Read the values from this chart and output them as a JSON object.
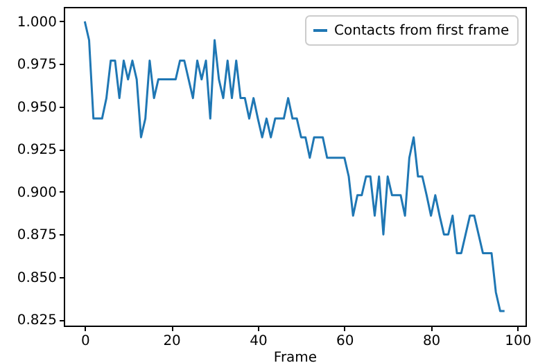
{
  "chart_data": {
    "type": "line",
    "xlabel": "Frame",
    "legend": "top right",
    "xlim": [
      -4.85,
      101.85
    ],
    "ylim": [
      0.8215,
      1.0085
    ],
    "xticks": [
      0,
      20,
      40,
      60,
      80,
      100
    ],
    "yticks": [
      {
        "value": 0.825,
        "label": "0.825"
      },
      {
        "value": 0.85,
        "label": "0.850"
      },
      {
        "value": 0.875,
        "label": "0.875"
      },
      {
        "value": 0.9,
        "label": "0.900"
      },
      {
        "value": 0.925,
        "label": "0.925"
      },
      {
        "value": 0.95,
        "label": "0.950"
      },
      {
        "value": 0.975,
        "label": "0.975"
      },
      {
        "value": 1.0,
        "label": "1.000"
      }
    ],
    "x": [
      0,
      1,
      2,
      3,
      4,
      5,
      6,
      7,
      8,
      9,
      10,
      11,
      12,
      13,
      14,
      15,
      16,
      17,
      18,
      19,
      20,
      21,
      22,
      23,
      24,
      25,
      26,
      27,
      28,
      29,
      30,
      31,
      32,
      33,
      34,
      35,
      36,
      37,
      38,
      39,
      40,
      41,
      42,
      43,
      44,
      45,
      46,
      47,
      48,
      49,
      50,
      51,
      52,
      53,
      54,
      55,
      56,
      57,
      58,
      59,
      60,
      61,
      62,
      63,
      64,
      65,
      66,
      67,
      68,
      69,
      70,
      71,
      72,
      73,
      74,
      75,
      76,
      77,
      78,
      79,
      80,
      81,
      82,
      83,
      84,
      85,
      86,
      87,
      88,
      89,
      90,
      91,
      92,
      93,
      94,
      95,
      96,
      97
    ],
    "series": [
      {
        "name": "Contacts from first frame",
        "color": "#1f77b4",
        "values": [
          1.0,
          0.989,
          0.943,
          0.943,
          0.943,
          0.955,
          0.977,
          0.977,
          0.955,
          0.977,
          0.966,
          0.977,
          0.966,
          0.932,
          0.943,
          0.977,
          0.955,
          0.966,
          0.966,
          0.966,
          0.966,
          0.966,
          0.977,
          0.977,
          0.966,
          0.955,
          0.977,
          0.966,
          0.977,
          0.943,
          0.989,
          0.966,
          0.955,
          0.977,
          0.955,
          0.977,
          0.955,
          0.955,
          0.943,
          0.955,
          0.943,
          0.932,
          0.943,
          0.932,
          0.943,
          0.943,
          0.943,
          0.955,
          0.943,
          0.943,
          0.932,
          0.932,
          0.92,
          0.932,
          0.932,
          0.932,
          0.92,
          0.92,
          0.92,
          0.92,
          0.92,
          0.909,
          0.886,
          0.898,
          0.898,
          0.909,
          0.909,
          0.886,
          0.909,
          0.875,
          0.909,
          0.898,
          0.898,
          0.898,
          0.886,
          0.92,
          0.932,
          0.909,
          0.909,
          0.898,
          0.886,
          0.898,
          0.886,
          0.875,
          0.875,
          0.886,
          0.864,
          0.864,
          0.875,
          0.886,
          0.886,
          0.875,
          0.864,
          0.864,
          0.864,
          0.841,
          0.83,
          0.83
        ]
      }
    ]
  }
}
